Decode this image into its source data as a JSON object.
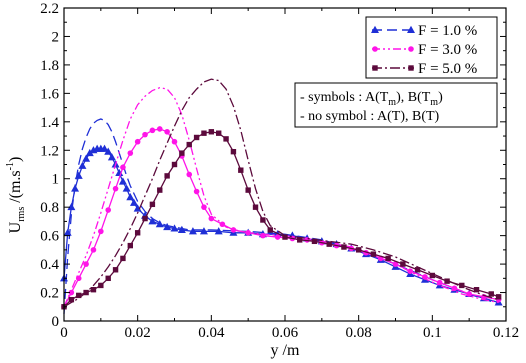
{
  "chart_data": {
    "type": "line",
    "xlabel": "y /m",
    "ylabel": {
      "base": "U",
      "sub": "rms",
      "rest": " /(m.s",
      "sup": "-1",
      "close": ")"
    },
    "xlim": [
      0,
      0.12
    ],
    "ylim": [
      0,
      2.2
    ],
    "xticks": [
      "0",
      "0.02",
      "0.04",
      "0.06",
      "0.08",
      "0.1",
      "0.12"
    ],
    "xtick_values": [
      0,
      0.02,
      0.04,
      0.06,
      0.08,
      0.1,
      0.12
    ],
    "yticks": [
      "0",
      "0.2",
      "0.4",
      "0.6",
      "0.8",
      "1",
      "1.2",
      "1.4",
      "1.6",
      "1.8",
      "2",
      "2.2"
    ],
    "ytick_values": [
      0,
      0.2,
      0.4,
      0.6,
      0.8,
      1.0,
      1.2,
      1.4,
      1.6,
      1.8,
      2.0,
      2.2
    ],
    "grid": false,
    "legend_position": "top-right",
    "legend": [
      {
        "label": "F = 1.0 %",
        "color": "#1f2fd6",
        "marker": "triangle",
        "dash": "10,5"
      },
      {
        "label": "F = 3.0 %",
        "color": "#ff14e8",
        "marker": "circle",
        "dash": "8,3,2,3,2,3"
      },
      {
        "label": "F = 5.0 %",
        "color": "#5c0a3c",
        "marker": "square",
        "dash": "10,3,2,3"
      }
    ],
    "annotations": [
      {
        "parts": [
          [
            "- symbols : A(T",
            ""
          ],
          [
            "m",
            "sub"
          ],
          [
            "), B(T",
            ""
          ],
          [
            "m",
            "sub"
          ],
          [
            ")",
            ""
          ]
        ]
      },
      {
        "parts": [
          [
            "- no symbol : A(T), B(T)",
            ""
          ]
        ]
      }
    ],
    "series": [
      {
        "color": "#1f2fd6",
        "marker": "triangle",
        "dash": "",
        "x": [
          0.0,
          0.001,
          0.002,
          0.003,
          0.004,
          0.005,
          0.006,
          0.007,
          0.008,
          0.009,
          0.01,
          0.011,
          0.012,
          0.013,
          0.014,
          0.015,
          0.016,
          0.017,
          0.018,
          0.019,
          0.02,
          0.022,
          0.024,
          0.026,
          0.028,
          0.03,
          0.032,
          0.035,
          0.038,
          0.042,
          0.046,
          0.05,
          0.054,
          0.058,
          0.062,
          0.066,
          0.07,
          0.074,
          0.078,
          0.082,
          0.086,
          0.09,
          0.094,
          0.098,
          0.102,
          0.106,
          0.11,
          0.114,
          0.118
        ],
        "y": [
          0.3,
          0.62,
          0.8,
          0.93,
          1.02,
          1.09,
          1.14,
          1.18,
          1.2,
          1.21,
          1.21,
          1.21,
          1.19,
          1.15,
          1.1,
          1.04,
          0.98,
          0.93,
          0.87,
          0.83,
          0.79,
          0.74,
          0.7,
          0.68,
          0.66,
          0.65,
          0.64,
          0.63,
          0.63,
          0.63,
          0.62,
          0.62,
          0.61,
          0.61,
          0.6,
          0.58,
          0.56,
          0.54,
          0.51,
          0.47,
          0.43,
          0.38,
          0.33,
          0.29,
          0.25,
          0.22,
          0.19,
          0.16,
          0.13
        ]
      },
      {
        "color": "#1f2fd6",
        "marker": "none",
        "dash": "10,5",
        "x": [
          0.0,
          0.001,
          0.002,
          0.003,
          0.004,
          0.005,
          0.006,
          0.007,
          0.008,
          0.009,
          0.01,
          0.011,
          0.012,
          0.013,
          0.014,
          0.015,
          0.016,
          0.017,
          0.018,
          0.02,
          0.022,
          0.024,
          0.026,
          0.028,
          0.03,
          0.034,
          0.04,
          0.05,
          0.06,
          0.07,
          0.08,
          0.09,
          0.1,
          0.11,
          0.118
        ],
        "y": [
          0.05,
          0.45,
          0.75,
          0.95,
          1.1,
          1.21,
          1.29,
          1.35,
          1.39,
          1.41,
          1.42,
          1.41,
          1.38,
          1.33,
          1.26,
          1.18,
          1.1,
          1.02,
          0.95,
          0.84,
          0.77,
          0.72,
          0.69,
          0.67,
          0.66,
          0.64,
          0.64,
          0.63,
          0.61,
          0.57,
          0.5,
          0.4,
          0.29,
          0.19,
          0.12
        ]
      },
      {
        "color": "#ff14e8",
        "marker": "circle",
        "dash": "",
        "x": [
          0.0,
          0.002,
          0.004,
          0.006,
          0.008,
          0.01,
          0.012,
          0.014,
          0.016,
          0.018,
          0.02,
          0.022,
          0.024,
          0.026,
          0.028,
          0.03,
          0.032,
          0.034,
          0.036,
          0.038,
          0.04,
          0.043,
          0.046,
          0.05,
          0.054,
          0.058,
          0.062,
          0.066,
          0.07,
          0.074,
          0.078,
          0.082,
          0.086,
          0.09,
          0.094,
          0.098,
          0.102,
          0.106,
          0.11,
          0.114,
          0.118
        ],
        "y": [
          0.1,
          0.2,
          0.3,
          0.4,
          0.5,
          0.63,
          0.78,
          0.93,
          1.08,
          1.18,
          1.26,
          1.31,
          1.34,
          1.35,
          1.33,
          1.26,
          1.16,
          1.03,
          0.91,
          0.8,
          0.72,
          0.68,
          0.64,
          0.62,
          0.6,
          0.59,
          0.58,
          0.57,
          0.55,
          0.53,
          0.51,
          0.48,
          0.44,
          0.4,
          0.35,
          0.31,
          0.27,
          0.23,
          0.19,
          0.17,
          0.15
        ]
      },
      {
        "color": "#ff14e8",
        "marker": "none",
        "dash": "8,3,2,3,2,3",
        "x": [
          0.0,
          0.002,
          0.004,
          0.006,
          0.008,
          0.01,
          0.012,
          0.014,
          0.016,
          0.018,
          0.02,
          0.022,
          0.024,
          0.026,
          0.028,
          0.03,
          0.032,
          0.034,
          0.036,
          0.038,
          0.04,
          0.044,
          0.048,
          0.054,
          0.06,
          0.066,
          0.072,
          0.078,
          0.084,
          0.09,
          0.096,
          0.102,
          0.108,
          0.114,
          0.118
        ],
        "y": [
          0.1,
          0.22,
          0.34,
          0.46,
          0.6,
          0.76,
          0.93,
          1.1,
          1.27,
          1.42,
          1.52,
          1.58,
          1.62,
          1.64,
          1.63,
          1.57,
          1.45,
          1.27,
          1.07,
          0.88,
          0.75,
          0.66,
          0.63,
          0.61,
          0.6,
          0.58,
          0.55,
          0.52,
          0.47,
          0.4,
          0.32,
          0.25,
          0.19,
          0.15,
          0.13
        ]
      },
      {
        "color": "#5c0a3c",
        "marker": "square",
        "dash": "",
        "x": [
          0.0,
          0.002,
          0.004,
          0.006,
          0.008,
          0.01,
          0.012,
          0.014,
          0.016,
          0.018,
          0.02,
          0.022,
          0.024,
          0.026,
          0.028,
          0.03,
          0.032,
          0.034,
          0.036,
          0.038,
          0.04,
          0.042,
          0.044,
          0.046,
          0.048,
          0.05,
          0.052,
          0.054,
          0.056,
          0.06,
          0.064,
          0.068,
          0.072,
          0.076,
          0.08,
          0.084,
          0.088,
          0.092,
          0.096,
          0.1,
          0.104,
          0.108,
          0.112,
          0.116,
          0.118
        ],
        "y": [
          0.1,
          0.15,
          0.18,
          0.2,
          0.22,
          0.25,
          0.3,
          0.36,
          0.44,
          0.53,
          0.62,
          0.72,
          0.82,
          0.92,
          1.02,
          1.1,
          1.18,
          1.24,
          1.29,
          1.32,
          1.33,
          1.32,
          1.28,
          1.19,
          1.06,
          0.92,
          0.8,
          0.71,
          0.64,
          0.59,
          0.57,
          0.56,
          0.54,
          0.52,
          0.5,
          0.47,
          0.44,
          0.4,
          0.36,
          0.32,
          0.28,
          0.25,
          0.22,
          0.19,
          0.17
        ]
      },
      {
        "color": "#5c0a3c",
        "marker": "none",
        "dash": "10,3,2,3",
        "x": [
          0.0,
          0.002,
          0.004,
          0.006,
          0.008,
          0.01,
          0.012,
          0.014,
          0.016,
          0.018,
          0.02,
          0.022,
          0.024,
          0.026,
          0.028,
          0.03,
          0.032,
          0.034,
          0.036,
          0.038,
          0.04,
          0.042,
          0.044,
          0.046,
          0.048,
          0.05,
          0.052,
          0.054,
          0.056,
          0.06,
          0.066,
          0.072,
          0.078,
          0.084,
          0.09,
          0.096,
          0.102,
          0.108,
          0.114,
          0.118
        ],
        "y": [
          0.1,
          0.13,
          0.16,
          0.2,
          0.25,
          0.31,
          0.38,
          0.46,
          0.55,
          0.65,
          0.76,
          0.88,
          1.0,
          1.13,
          1.25,
          1.37,
          1.48,
          1.57,
          1.63,
          1.68,
          1.7,
          1.69,
          1.63,
          1.51,
          1.34,
          1.13,
          0.93,
          0.77,
          0.67,
          0.6,
          0.58,
          0.56,
          0.54,
          0.5,
          0.45,
          0.38,
          0.31,
          0.24,
          0.18,
          0.15
        ]
      }
    ]
  }
}
